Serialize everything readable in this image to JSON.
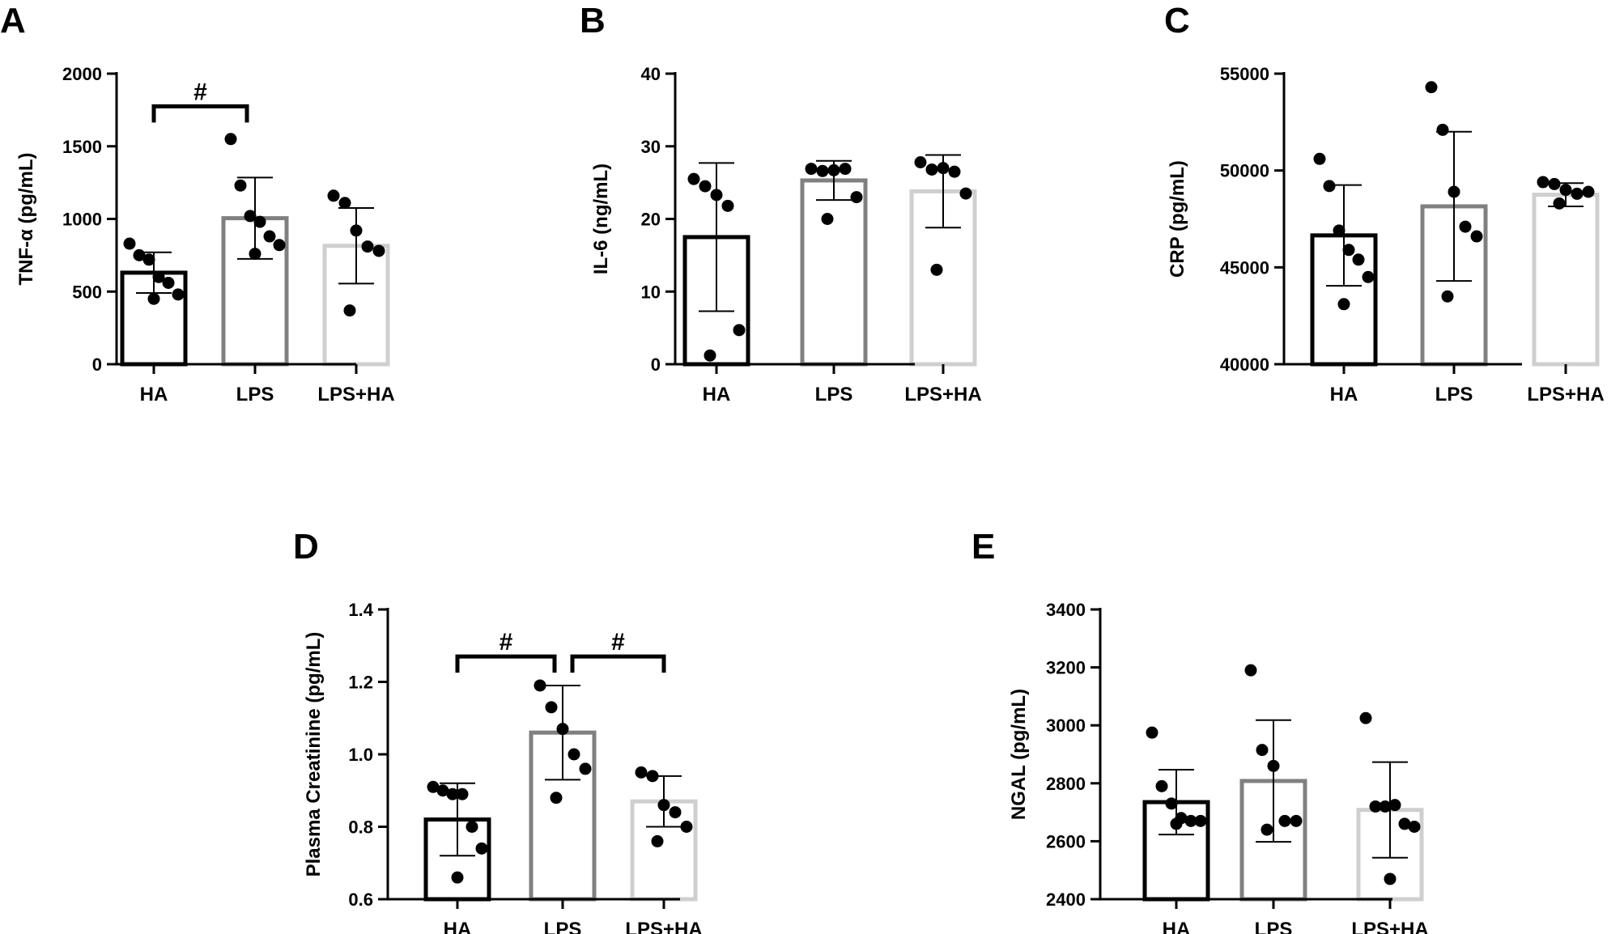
{
  "chart_data": [
    {
      "panel": "A",
      "type": "bar",
      "categories": [
        "HA",
        "LPS",
        "LPS+HA"
      ],
      "ylabel": "TNF-α (pg/mL)",
      "ylim": [
        0,
        2000
      ],
      "yticks": [
        0,
        500,
        1000,
        1500,
        2000
      ],
      "means": [
        630,
        1005,
        815
      ],
      "sd": [
        140,
        280,
        260
      ],
      "points": [
        [
          830,
          750,
          720,
          600,
          560,
          480,
          450
        ],
        [
          1550,
          1230,
          1020,
          980,
          880,
          820,
          760
        ],
        [
          1160,
          1110,
          920,
          810,
          780,
          370
        ]
      ],
      "significance": [
        {
          "from": 0,
          "to": 1,
          "label": "#"
        }
      ]
    },
    {
      "panel": "B",
      "type": "bar",
      "categories": [
        "HA",
        "LPS",
        "LPS+HA"
      ],
      "ylabel": "IL-6 (ng/mL)",
      "ylim": [
        0,
        40
      ],
      "yticks": [
        0,
        10,
        20,
        30,
        40
      ],
      "means": [
        17.5,
        25.3,
        23.8
      ],
      "sd": [
        10.2,
        2.7,
        5.0
      ],
      "points": [
        [
          25.5,
          24.5,
          23.3,
          21.8,
          4.7,
          1.2
        ],
        [
          26.9,
          26.6,
          26.7,
          26.9,
          23.0,
          20.0
        ],
        [
          27.8,
          26.8,
          27.0,
          26.5,
          23.5,
          13.0
        ]
      ],
      "significance": []
    },
    {
      "panel": "C",
      "type": "bar",
      "categories": [
        "HA",
        "LPS",
        "LPS+HA"
      ],
      "ylabel": "CRP (pg/mL)",
      "ylim": [
        40000,
        55000
      ],
      "yticks": [
        40000,
        45000,
        50000,
        55000
      ],
      "means": [
        46650,
        48150,
        48750
      ],
      "sd": [
        2600,
        3850,
        600
      ],
      "points": [
        [
          50600,
          49200,
          46900,
          45900,
          45400,
          44500,
          43100
        ],
        [
          54300,
          52100,
          48900,
          47100,
          46600,
          43500
        ],
        [
          49400,
          49300,
          49000,
          48800,
          48900,
          48300
        ]
      ],
      "significance": []
    },
    {
      "panel": "D",
      "type": "bar",
      "categories": [
        "HA",
        "LPS",
        "LPS+HA"
      ],
      "ylabel": "Plasma Creatinine (pg/mL)",
      "ylim": [
        0.6,
        1.4
      ],
      "yticks": [
        0.6,
        0.8,
        1.0,
        1.2,
        1.4
      ],
      "means": [
        0.82,
        1.06,
        0.87
      ],
      "sd": [
        0.1,
        0.13,
        0.07
      ],
      "points": [
        [
          0.91,
          0.9,
          0.89,
          0.89,
          0.8,
          0.74,
          0.66
        ],
        [
          1.19,
          1.13,
          1.07,
          1.0,
          0.96,
          0.88
        ],
        [
          0.95,
          0.94,
          0.86,
          0.84,
          0.8,
          0.76
        ]
      ],
      "significance": [
        {
          "from": 0,
          "to": 1,
          "label": "#"
        },
        {
          "from": 1,
          "to": 2,
          "label": "#"
        }
      ]
    },
    {
      "panel": "E",
      "type": "bar",
      "categories": [
        "HA",
        "LPS",
        "LPS+HA"
      ],
      "ylabel": "NGAL (pg/mL)",
      "ylim": [
        2400,
        3400
      ],
      "yticks": [
        2400,
        2600,
        2800,
        3000,
        3200,
        3400
      ],
      "means": [
        2735,
        2808,
        2708
      ],
      "sd": [
        112,
        210,
        165
      ],
      "points": [
        [
          2975,
          2790,
          2730,
          2680,
          2670,
          2670,
          2660
        ],
        [
          3190,
          2915,
          2860,
          2670,
          2670,
          2640
        ],
        [
          3025,
          2720,
          2720,
          2725,
          2660,
          2650,
          2470
        ]
      ],
      "significance": []
    }
  ],
  "style": {
    "bar_colors": [
      "#000000",
      "#808080",
      "#cfcfcf"
    ],
    "axis_color": "#000000",
    "dot_color": "#000000"
  }
}
